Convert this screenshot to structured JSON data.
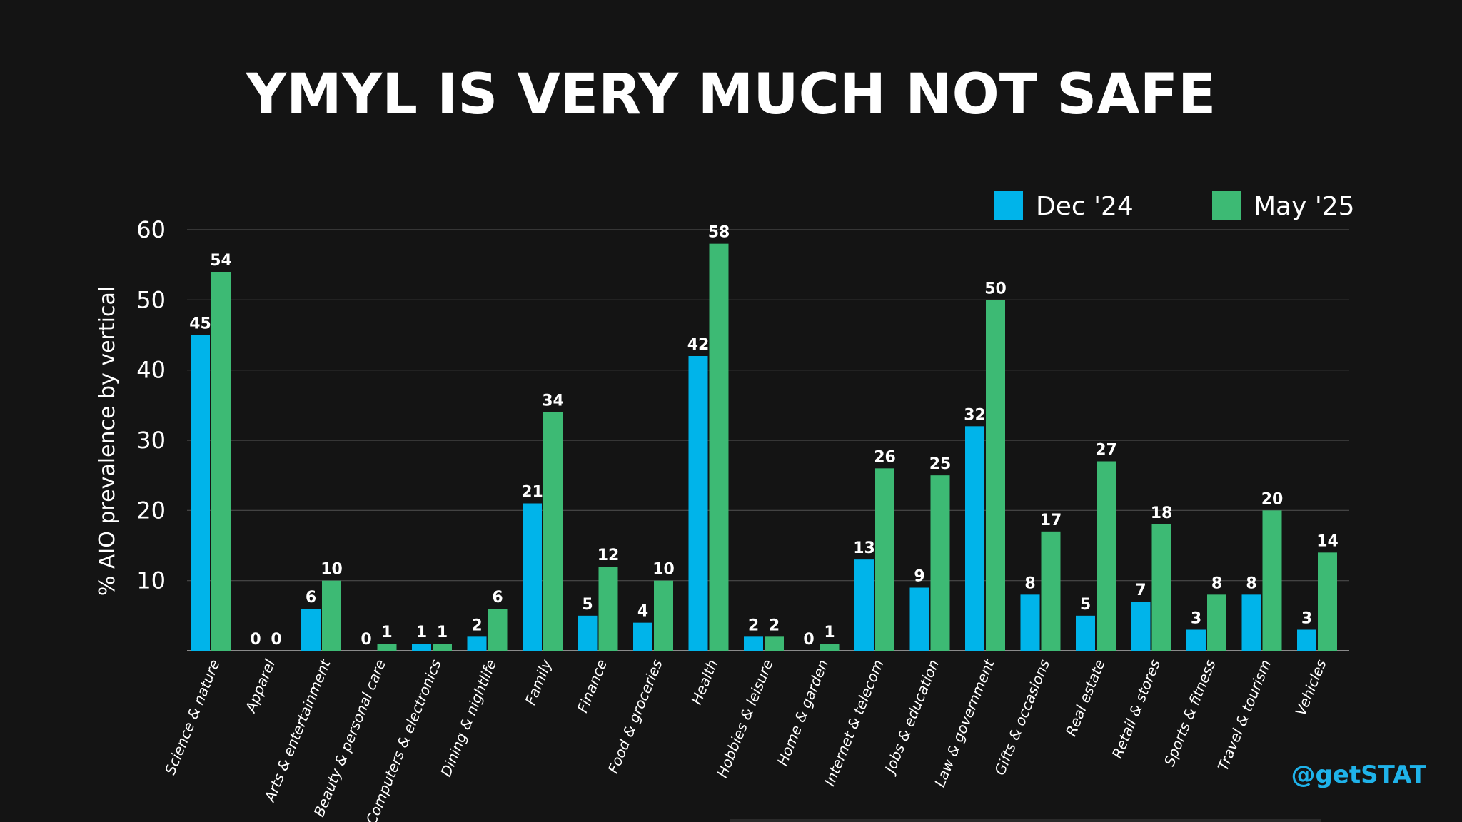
{
  "chart_data": {
    "type": "bar",
    "title": "YMYL IS VERY MUCH NOT SAFE",
    "ylabel": "% AIO prevalence by vertical",
    "xlabel": "",
    "ylim": [
      0,
      60
    ],
    "yticks": [
      10,
      20,
      30,
      40,
      50,
      60
    ],
    "grid": true,
    "legend_position": "top-right",
    "categories": [
      "Science & nature",
      "Apparel",
      "Arts & entertainment",
      "Beauty & personal care",
      "Computers & electronics",
      "Dining & nightlife",
      "Family",
      "Finance",
      "Food & groceries",
      "Health",
      "Hobbies & leisure",
      "Home & garden",
      "Internet & telecom",
      "Jobs & education",
      "Law & government",
      "Gifts & occasions",
      "Real estate",
      "Retail & stores",
      "Sports & fitness",
      "Travel & tourism",
      "Vehicles"
    ],
    "series": [
      {
        "name": "Dec '24",
        "color": "#00b4ea",
        "values": [
          45,
          0,
          6,
          0,
          1,
          2,
          21,
          5,
          4,
          42,
          2,
          0,
          13,
          9,
          32,
          8,
          5,
          7,
          3,
          8,
          3
        ]
      },
      {
        "name": "May '25",
        "color": "#3dba74",
        "values": [
          54,
          0,
          10,
          1,
          1,
          6,
          34,
          12,
          10,
          58,
          2,
          1,
          26,
          25,
          50,
          17,
          27,
          18,
          8,
          20,
          14
        ]
      }
    ]
  },
  "branding": {
    "handle": "@getSTAT",
    "handle_color": "#1fb3ea"
  },
  "colors": {
    "background": "#141414",
    "gridline": "#4a4a4a",
    "axis": "#8a8a8a",
    "text": "#ffffff"
  }
}
